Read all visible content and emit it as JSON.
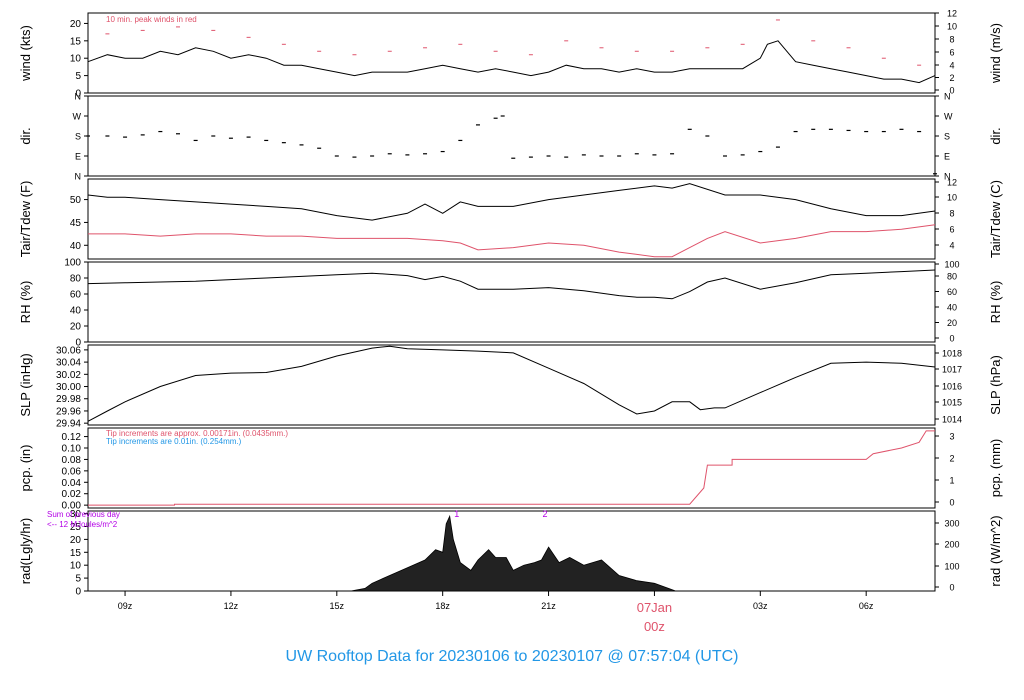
{
  "colors": {
    "black": "#000000",
    "red": "#df536b",
    "blue": "#2297e6",
    "purple": "#b300e6",
    "gray": "#555555"
  },
  "footer": {
    "title": "UW Rooftop Data for 20230106  to  20230107 @ 07:57:04  (UTC)"
  },
  "x_axis": {
    "ticks": [
      "09z",
      "12z",
      "15z",
      "18z",
      "21z",
      "00z",
      "03z",
      "06z"
    ],
    "date_label": "07Jan",
    "date_sublabel": "00z"
  },
  "chart_data": [
    {
      "id": "wind",
      "type": "line",
      "ylabel": "wind (kts)",
      "ylabel_right": "wind (m/s)",
      "ylim": [
        0,
        23
      ],
      "yticks": [
        0,
        5,
        10,
        15,
        20
      ],
      "right_ticks": [
        "0",
        "2",
        "4",
        "6",
        "8",
        "10",
        "12"
      ],
      "annotation": "10 min. peak winds in red",
      "series": [
        {
          "x": [
            7.95,
            8.5,
            9,
            9.5,
            10,
            10.5,
            11,
            11.5,
            12,
            12.5,
            13,
            13.5,
            14,
            14.5,
            15,
            15.5,
            16,
            16.5,
            17,
            17.5,
            18,
            18.5,
            19,
            19.5,
            20,
            20.5,
            21,
            21.5,
            22,
            22.5,
            23,
            23.5,
            24,
            24.5,
            25,
            25.5,
            26,
            26.5,
            27,
            27.2,
            27.5,
            28,
            28.5,
            29,
            29.5,
            30,
            30.5,
            31,
            31.5,
            31.95
          ],
          "y": [
            9,
            11,
            10,
            10,
            12,
            11,
            13,
            12,
            10,
            11,
            10,
            8,
            8,
            7,
            6,
            5,
            6,
            6,
            6,
            7,
            8,
            7,
            6,
            7,
            6,
            5,
            6,
            8,
            7,
            7,
            6,
            7,
            6,
            6,
            7,
            7,
            7,
            7,
            10,
            14,
            15,
            9,
            8,
            7,
            6,
            5,
            4,
            4,
            3,
            5
          ]
        },
        {
          "name": "10 min. peak winds",
          "color": "red",
          "x": [
            8.5,
            9.5,
            10.5,
            11.5,
            12.5,
            13.5,
            14.5,
            15.5,
            16.5,
            17.5,
            18.5,
            19.5,
            20.5,
            21.5,
            22.5,
            23.5,
            24.5,
            25.5,
            26.5,
            27.5,
            28.5,
            29.5,
            30.5,
            31.5
          ],
          "y": [
            17,
            18,
            19,
            18,
            16,
            14,
            12,
            11,
            12,
            13,
            14,
            12,
            11,
            15,
            13,
            12,
            12,
            13,
            14,
            21,
            15,
            13,
            10,
            8
          ]
        }
      ]
    },
    {
      "id": "dir",
      "type": "scatter",
      "ylabel": "dir.",
      "ylabel_right": "dir.",
      "ylim": [
        0,
        360
      ],
      "yticks": [
        0,
        90,
        180,
        270,
        360
      ],
      "tick_labels": [
        "N",
        "E",
        "S",
        "W",
        "N"
      ],
      "series": [
        {
          "x": [
            7.95,
            8.5,
            9,
            9.5,
            10,
            10.5,
            11,
            11.5,
            12,
            12.5,
            13,
            13.5,
            14,
            14.5,
            15,
            15.5,
            16,
            16.5,
            17,
            17.5,
            18,
            18.5,
            19,
            19.5,
            19.7,
            20,
            20.5,
            21,
            21.5,
            22,
            22.5,
            23,
            23.5,
            24,
            24.5,
            25,
            25.5,
            26,
            26.5,
            27,
            27.5,
            28,
            28.5,
            29,
            29.5,
            30,
            30.5,
            31,
            31.5,
            31.95
          ],
          "y": [
            180,
            180,
            175,
            185,
            200,
            190,
            160,
            180,
            170,
            175,
            160,
            150,
            140,
            125,
            90,
            85,
            90,
            100,
            95,
            100,
            110,
            160,
            230,
            260,
            270,
            80,
            85,
            90,
            85,
            95,
            90,
            90,
            100,
            95,
            100,
            210,
            180,
            90,
            95,
            110,
            130,
            200,
            210,
            210,
            205,
            200,
            200,
            210,
            200,
            10
          ]
        }
      ]
    },
    {
      "id": "temp",
      "type": "line",
      "ylabel": "Tair/Tdew (F)",
      "ylabel_right": "Tair/Tdew (C)",
      "ylim": [
        37,
        54.5
      ],
      "yticks": [
        40,
        45,
        50
      ],
      "right_ticks": [
        "4",
        "6",
        "8",
        "10",
        "12"
      ],
      "series": [
        {
          "name": "Tair",
          "x": [
            7.95,
            8.5,
            9,
            10,
            11,
            12,
            13,
            14,
            15,
            16,
            17,
            17.5,
            18,
            18.5,
            19,
            20,
            21,
            22,
            23,
            24,
            24.5,
            25,
            26,
            27,
            28,
            29,
            30,
            31,
            31.95
          ],
          "y": [
            51,
            50.5,
            50.5,
            50,
            49.5,
            49,
            48.5,
            48,
            46.5,
            45.5,
            47,
            49,
            47,
            49.5,
            48.5,
            48.5,
            50,
            51,
            52,
            53,
            52.5,
            53.5,
            51,
            51,
            50,
            48,
            46.5,
            46.5,
            47.5
          ]
        },
        {
          "name": "Tdew",
          "color": "red",
          "x": [
            7.95,
            9,
            10,
            11,
            12,
            13,
            14,
            15,
            16,
            17,
            18,
            18.5,
            19,
            20,
            21,
            22,
            23,
            24,
            24.5,
            25,
            25.5,
            26,
            27,
            28,
            29,
            30,
            31,
            31.95
          ],
          "y": [
            42.5,
            42.5,
            42,
            42.5,
            42.5,
            42,
            42,
            41.5,
            41.5,
            41.5,
            41,
            40.5,
            39,
            39.5,
            40.5,
            40,
            38.5,
            37.5,
            37.5,
            39.5,
            41.5,
            43,
            40.5,
            41.5,
            43,
            43,
            43.5,
            44.5
          ]
        }
      ]
    },
    {
      "id": "rh",
      "type": "line",
      "ylabel": "RH (%)",
      "ylabel_right": "RH (%)",
      "ylim": [
        0,
        100
      ],
      "yticks": [
        0,
        20,
        40,
        60,
        80,
        100
      ],
      "right_ticks": [
        "0",
        "20",
        "40",
        "60",
        "80",
        "100"
      ],
      "series": [
        {
          "x": [
            7.95,
            9,
            10,
            11,
            12,
            13,
            14,
            15,
            16,
            17,
            17.5,
            18,
            18.5,
            19,
            20,
            21,
            22,
            23,
            23.5,
            24,
            24.5,
            25,
            25.5,
            26,
            27,
            28,
            29,
            30,
            31,
            31.95
          ],
          "y": [
            73,
            74,
            75,
            76,
            78,
            80,
            82,
            84,
            86,
            83,
            78,
            82,
            76,
            66,
            66,
            68,
            64,
            58,
            56,
            56,
            54,
            63,
            75,
            80,
            66,
            74,
            84,
            86,
            88,
            90
          ]
        }
      ]
    },
    {
      "id": "slp",
      "type": "line",
      "ylabel": "SLP (inHg)",
      "ylabel_right": "SLP (hPa)",
      "ylim": [
        29.937,
        30.068
      ],
      "yticks": [
        29.94,
        29.96,
        29.98,
        30.0,
        30.02,
        30.04,
        30.06
      ],
      "right_ticks": [
        "1014",
        "1015",
        "1016",
        "1017",
        "1018"
      ],
      "series": [
        {
          "x": [
            7.95,
            8.5,
            9,
            10,
            11,
            12,
            13,
            14,
            15,
            16,
            16.5,
            17,
            18,
            19,
            20,
            21,
            22,
            23,
            23.5,
            24,
            24.5,
            25,
            25.3,
            25.7,
            26,
            27,
            28,
            29,
            30,
            31,
            31.95
          ],
          "y": [
            29.943,
            29.96,
            29.975,
            30.0,
            30.018,
            30.022,
            30.023,
            30.033,
            30.05,
            30.063,
            30.066,
            30.062,
            30.06,
            30.058,
            30.055,
            30.03,
            30.005,
            29.97,
            29.955,
            29.96,
            29.975,
            29.975,
            29.962,
            29.965,
            29.965,
            29.99,
            30.015,
            30.038,
            30.04,
            30.038,
            30.032
          ]
        }
      ]
    },
    {
      "id": "pcp",
      "type": "line",
      "ylabel": "pcp. (in)",
      "ylabel_right": "pcp. (mm)",
      "ylim": [
        -0.005,
        0.135
      ],
      "yticks": [
        0.0,
        0.02,
        0.04,
        0.06,
        0.08,
        0.1,
        0.12
      ],
      "right_ticks": [
        "0",
        "1",
        "2",
        "3"
      ],
      "annotations": [
        {
          "text": "Tip increments are approx. 0.00171in. (0.0435mm.)",
          "color": "red"
        },
        {
          "text": "Tip increments are 0.01in. (0.254mm.)",
          "color": "blue"
        }
      ],
      "series": [
        {
          "color": "red",
          "x": [
            7.95,
            10.4,
            10.4,
            25.0,
            25.4,
            25.5,
            26.2,
            26.2,
            27.0,
            27.5,
            29.0,
            30.0,
            30.2,
            31.0,
            31.5,
            31.7,
            31.95
          ],
          "y": [
            0.0,
            0.0,
            0.0017,
            0.0017,
            0.03,
            0.07,
            0.07,
            0.08,
            0.08,
            0.08,
            0.08,
            0.08,
            0.09,
            0.1,
            0.11,
            0.13,
            0.13
          ]
        }
      ]
    },
    {
      "id": "rad",
      "type": "area",
      "ylabel": "rad(Lgly/hr)",
      "ylabel_right": "rad (W/m^2)",
      "ylim": [
        0,
        31
      ],
      "yticks": [
        0,
        5,
        10,
        15,
        20,
        25,
        30
      ],
      "right_ticks": [
        "0",
        "100",
        "200",
        "300"
      ],
      "annotation_lines": [
        "Sum of previous day",
        "<-- 12 MJoules/m^2"
      ],
      "markers": [
        {
          "x": 18.4,
          "label": "1"
        },
        {
          "x": 20.9,
          "label": "2"
        }
      ],
      "series": [
        {
          "x": [
            15.4,
            15.8,
            16,
            16.5,
            17,
            17.5,
            17.8,
            18,
            18.1,
            18.2,
            18.3,
            18.5,
            18.8,
            19,
            19.3,
            19.5,
            19.8,
            20,
            20.3,
            20.6,
            20.8,
            21,
            21.3,
            21.6,
            22,
            22.5,
            23,
            23.5,
            24,
            24.4,
            24.6
          ],
          "y": [
            0,
            1,
            3,
            6,
            9,
            12,
            16,
            15,
            26,
            29,
            20,
            11,
            8,
            12,
            16,
            13,
            13,
            8,
            10,
            11,
            12,
            17,
            11,
            13,
            10,
            12,
            6,
            4,
            3,
            1,
            0
          ]
        }
      ]
    }
  ]
}
